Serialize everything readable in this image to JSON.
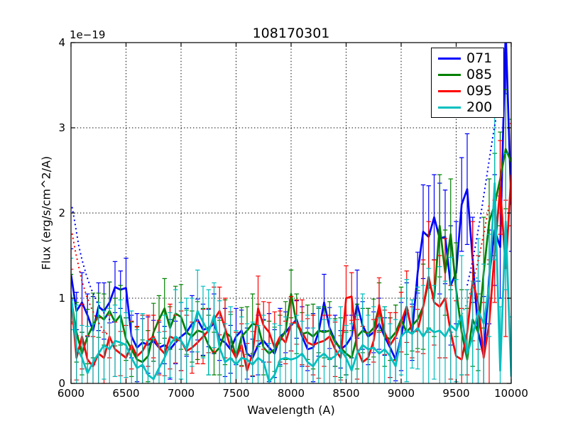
{
  "figure": {
    "title": "108170301",
    "offset_text": "1e−19",
    "xlabel": "Wavelength (A)",
    "ylabel": "Flux (erg/s/cm^2/A)",
    "background_color": "#ffffff"
  },
  "legend": {
    "position": "upper right",
    "entries": [
      {
        "label": "071",
        "color": "#0000ff"
      },
      {
        "label": "085",
        "color": "#008000"
      },
      {
        "label": "095",
        "color": "#ff0000"
      },
      {
        "label": "200",
        "color": "#00bfbf"
      }
    ]
  },
  "chart_data": {
    "type": "line",
    "title": "108170301",
    "xlabel": "Wavelength (A)",
    "ylabel": "Flux (erg/s/cm^2/A)",
    "y_offset_factor": "1e-19",
    "xlim": [
      6000,
      10000
    ],
    "ylim": [
      0,
      4
    ],
    "xticks": [
      6000,
      6500,
      7000,
      7500,
      8000,
      8500,
      9000,
      9500,
      10000
    ],
    "yticks": [
      0,
      1,
      2,
      3,
      4
    ],
    "grid": true,
    "grid_style": "dotted",
    "legend_position": "upper right",
    "x": [
      6000,
      6050,
      6100,
      6150,
      6200,
      6250,
      6300,
      6350,
      6400,
      6450,
      6500,
      6550,
      6600,
      6650,
      6700,
      6750,
      6800,
      6850,
      6900,
      6950,
      7000,
      7050,
      7100,
      7150,
      7200,
      7250,
      7300,
      7350,
      7400,
      7450,
      7500,
      7550,
      7600,
      7650,
      7700,
      7750,
      7800,
      7850,
      7900,
      7950,
      8000,
      8050,
      8100,
      8150,
      8200,
      8250,
      8300,
      8350,
      8400,
      8450,
      8500,
      8550,
      8600,
      8650,
      8700,
      8750,
      8800,
      8850,
      8900,
      8950,
      9000,
      9050,
      9100,
      9150,
      9200,
      9250,
      9300,
      9350,
      9400,
      9450,
      9500,
      9550,
      9600,
      9650,
      9700,
      9750,
      9800,
      9850,
      9900,
      9950,
      10000
    ],
    "series": [
      {
        "name": "071",
        "color": "#0000ff",
        "values": [
          1.28,
          0.85,
          0.95,
          0.8,
          0.62,
          0.9,
          0.85,
          0.95,
          1.13,
          1.1,
          1.12,
          0.55,
          0.42,
          0.48,
          0.45,
          0.5,
          0.42,
          0.45,
          0.4,
          0.48,
          0.55,
          0.6,
          0.7,
          0.75,
          0.63,
          0.65,
          0.7,
          0.52,
          0.48,
          0.4,
          0.55,
          0.62,
          0.35,
          0.3,
          0.45,
          0.5,
          0.42,
          0.35,
          0.55,
          0.6,
          0.68,
          0.75,
          0.55,
          0.4,
          0.42,
          0.6,
          0.95,
          0.65,
          0.5,
          0.4,
          0.45,
          0.55,
          0.93,
          0.68,
          0.55,
          0.6,
          0.7,
          0.55,
          0.42,
          0.28,
          0.55,
          0.9,
          0.6,
          1.3,
          1.78,
          1.72,
          1.95,
          1.7,
          1.72,
          1.15,
          1.3,
          2.1,
          2.28,
          1.45,
          0.6,
          0.32,
          1.25,
          1.8,
          1.6,
          4.15,
          2.1
        ],
        "errors": [
          0.3,
          0.22,
          0.35,
          0.25,
          0.4,
          0.28,
          0.33,
          0.24,
          0.3,
          0.22,
          0.35,
          0.25,
          0.4,
          0.28,
          0.33,
          0.24,
          0.3,
          0.22,
          0.35,
          0.25,
          0.4,
          0.28,
          0.33,
          0.24,
          0.3,
          0.22,
          0.35,
          0.25,
          0.4,
          0.28,
          0.33,
          0.24,
          0.3,
          0.22,
          0.35,
          0.25,
          0.4,
          0.28,
          0.33,
          0.24,
          0.3,
          0.22,
          0.35,
          0.25,
          0.4,
          0.28,
          0.33,
          0.24,
          0.3,
          0.22,
          0.35,
          0.25,
          0.4,
          0.28,
          0.33,
          0.24,
          0.3,
          0.22,
          0.35,
          0.25,
          0.4,
          0.28,
          0.33,
          0.24,
          0.55,
          0.6,
          0.5,
          0.65,
          0.55,
          0.7,
          0.6,
          0.55,
          0.65,
          0.5,
          0.6,
          0.7,
          0.55,
          0.65,
          0.6,
          0.75,
          0.55
        ]
      },
      {
        "name": "085",
        "color": "#008000",
        "values": [
          1.0,
          0.6,
          0.35,
          0.55,
          0.68,
          0.8,
          0.75,
          0.85,
          0.72,
          0.8,
          0.52,
          0.4,
          0.28,
          0.25,
          0.32,
          0.6,
          0.75,
          0.88,
          0.65,
          0.82,
          0.78,
          0.6,
          0.55,
          0.62,
          0.6,
          0.45,
          0.35,
          0.42,
          0.6,
          0.55,
          0.3,
          0.55,
          0.62,
          0.7,
          0.68,
          0.42,
          0.35,
          0.4,
          0.5,
          0.62,
          1.05,
          0.7,
          0.58,
          0.6,
          0.55,
          0.62,
          0.6,
          0.62,
          0.48,
          0.42,
          0.35,
          0.3,
          0.55,
          0.62,
          0.58,
          0.65,
          0.9,
          0.55,
          0.52,
          0.6,
          0.75,
          0.6,
          0.68,
          0.75,
          0.9,
          1.2,
          1.0,
          1.85,
          1.3,
          1.75,
          1.1,
          0.6,
          0.28,
          0.75,
          0.6,
          1.3,
          1.9,
          2.1,
          2.4,
          2.75,
          2.6
        ],
        "errors": [
          0.28,
          0.35,
          0.25,
          0.32,
          0.38,
          0.26,
          0.3,
          0.34,
          0.28,
          0.35,
          0.25,
          0.32,
          0.38,
          0.26,
          0.3,
          0.34,
          0.28,
          0.35,
          0.25,
          0.32,
          0.38,
          0.26,
          0.3,
          0.34,
          0.28,
          0.35,
          0.25,
          0.32,
          0.38,
          0.26,
          0.3,
          0.34,
          0.28,
          0.35,
          0.25,
          0.32,
          0.38,
          0.26,
          0.3,
          0.34,
          0.28,
          0.35,
          0.25,
          0.32,
          0.38,
          0.26,
          0.3,
          0.34,
          0.28,
          0.35,
          0.25,
          0.32,
          0.38,
          0.26,
          0.3,
          0.34,
          0.28,
          0.35,
          0.25,
          0.32,
          0.38,
          0.26,
          0.3,
          0.34,
          0.5,
          0.55,
          0.45,
          0.6,
          0.5,
          0.65,
          0.55,
          0.5,
          0.6,
          0.55,
          0.45,
          0.65,
          0.5,
          0.6,
          0.55,
          0.7,
          0.5
        ]
      },
      {
        "name": "095",
        "color": "#ff0000",
        "values": [
          1.02,
          0.3,
          0.55,
          0.28,
          0.2,
          0.35,
          0.3,
          0.55,
          0.4,
          0.35,
          0.3,
          0.45,
          0.32,
          0.38,
          0.5,
          0.55,
          0.42,
          0.35,
          0.55,
          0.52,
          0.5,
          0.38,
          0.42,
          0.48,
          0.55,
          0.62,
          0.75,
          0.85,
          0.65,
          0.42,
          0.3,
          0.45,
          0.15,
          0.35,
          0.88,
          0.68,
          0.6,
          0.42,
          0.55,
          0.48,
          0.7,
          0.72,
          0.6,
          0.48,
          0.45,
          0.48,
          0.5,
          0.55,
          0.4,
          0.3,
          1.0,
          1.02,
          0.4,
          0.25,
          0.3,
          0.5,
          0.92,
          0.6,
          0.45,
          0.55,
          0.72,
          0.9,
          0.6,
          0.62,
          0.9,
          1.25,
          0.95,
          0.9,
          1.0,
          0.6,
          0.32,
          0.28,
          0.6,
          1.2,
          0.95,
          0.3,
          0.7,
          1.55,
          2.3,
          1.35,
          2.45
        ],
        "errors": [
          0.32,
          0.26,
          0.38,
          0.28,
          0.35,
          0.42,
          0.3,
          0.25,
          0.32,
          0.26,
          0.38,
          0.28,
          0.35,
          0.42,
          0.3,
          0.25,
          0.32,
          0.26,
          0.38,
          0.28,
          0.35,
          0.42,
          0.3,
          0.25,
          0.32,
          0.26,
          0.38,
          0.28,
          0.35,
          0.42,
          0.3,
          0.25,
          0.32,
          0.26,
          0.38,
          0.28,
          0.35,
          0.42,
          0.3,
          0.25,
          0.32,
          0.26,
          0.38,
          0.28,
          0.35,
          0.42,
          0.3,
          0.25,
          0.32,
          0.26,
          0.38,
          0.28,
          0.35,
          0.42,
          0.3,
          0.25,
          0.32,
          0.26,
          0.38,
          0.28,
          0.35,
          0.42,
          0.3,
          0.25,
          0.55,
          0.65,
          0.5,
          0.6,
          0.7,
          0.55,
          0.65,
          0.6,
          0.5,
          0.7,
          0.55,
          0.65,
          0.75,
          0.6,
          0.55,
          0.8,
          0.6
        ]
      },
      {
        "name": "200",
        "color": "#00bfbf",
        "values": [
          1.05,
          0.42,
          0.3,
          0.12,
          0.25,
          0.35,
          0.45,
          0.4,
          0.5,
          0.48,
          0.45,
          0.3,
          0.18,
          0.22,
          0.1,
          0.05,
          0.18,
          0.3,
          0.45,
          0.55,
          0.5,
          0.4,
          0.6,
          0.85,
          0.72,
          0.6,
          0.8,
          0.42,
          0.25,
          0.3,
          0.22,
          0.3,
          0.28,
          0.22,
          0.3,
          0.25,
          0.02,
          0.1,
          0.28,
          0.3,
          0.28,
          0.3,
          0.35,
          0.25,
          0.2,
          0.3,
          0.35,
          0.28,
          0.32,
          0.4,
          0.3,
          0.15,
          0.35,
          0.45,
          0.4,
          0.42,
          0.35,
          0.4,
          0.32,
          0.2,
          0.55,
          0.62,
          0.58,
          0.65,
          0.55,
          0.65,
          0.6,
          0.62,
          0.55,
          0.68,
          0.62,
          0.8,
          0.35,
          0.55,
          0.85,
          0.7,
          1.15,
          2.35,
          0.15,
          1.9,
          0.08
        ],
        "errors": [
          0.42,
          0.5,
          0.38,
          0.55,
          0.45,
          0.6,
          0.4,
          0.48,
          0.42,
          0.5,
          0.38,
          0.55,
          0.45,
          0.6,
          0.4,
          0.48,
          0.42,
          0.5,
          0.38,
          0.55,
          0.45,
          0.6,
          0.4,
          0.48,
          0.42,
          0.5,
          0.38,
          0.55,
          0.45,
          0.6,
          0.4,
          0.48,
          0.42,
          0.5,
          0.38,
          0.55,
          0.45,
          0.6,
          0.4,
          0.48,
          0.42,
          0.5,
          0.38,
          0.55,
          0.45,
          0.6,
          0.4,
          0.48,
          0.42,
          0.5,
          0.38,
          0.55,
          0.45,
          0.6,
          0.4,
          0.48,
          0.42,
          0.5,
          0.38,
          0.55,
          0.45,
          0.6,
          0.4,
          0.48,
          0.6,
          0.7,
          0.55,
          0.75,
          0.65,
          0.8,
          0.6,
          0.7,
          0.75,
          0.65,
          0.85,
          0.7,
          0.6,
          0.9,
          0.75,
          0.8,
          0.7
        ]
      }
    ],
    "dotted_segments": [
      {
        "series": "071",
        "color": "#0000ff",
        "points": [
          [
            6010,
            2.07
          ],
          [
            6040,
            1.85
          ],
          [
            6070,
            1.62
          ],
          [
            6100,
            1.45
          ],
          [
            6140,
            1.27
          ],
          [
            6180,
            1.12
          ],
          [
            6230,
            0.97
          ],
          [
            6280,
            0.86
          ],
          [
            6340,
            0.76
          ],
          [
            6400,
            0.7
          ]
        ]
      },
      {
        "series": "095",
        "color": "#ff0000",
        "points": [
          [
            6010,
            1.76
          ],
          [
            6040,
            1.55
          ],
          [
            6070,
            1.37
          ],
          [
            6100,
            1.2
          ],
          [
            6140,
            1.03
          ],
          [
            6180,
            0.9
          ],
          [
            6230,
            0.76
          ],
          [
            6280,
            0.65
          ],
          [
            6340,
            0.56
          ]
        ]
      },
      {
        "series": "071",
        "color": "#0000ff",
        "points": [
          [
            9600,
            1.15
          ],
          [
            9640,
            1.38
          ],
          [
            9680,
            1.65
          ],
          [
            9720,
            1.95
          ],
          [
            9760,
            2.28
          ],
          [
            9800,
            2.62
          ],
          [
            9840,
            2.95
          ],
          [
            9880,
            3.25
          ]
        ]
      },
      {
        "series": "095",
        "color": "#ff0000",
        "points": [
          [
            9600,
            0.95
          ],
          [
            9640,
            1.12
          ],
          [
            9680,
            1.33
          ],
          [
            9720,
            1.56
          ],
          [
            9760,
            1.82
          ],
          [
            9800,
            2.1
          ]
        ]
      },
      {
        "series": "200",
        "color": "#00bfbf",
        "points": [
          [
            9440,
            0.55
          ],
          [
            9490,
            0.66
          ],
          [
            9540,
            0.78
          ],
          [
            9590,
            0.92
          ],
          [
            9640,
            1.08
          ],
          [
            9690,
            1.25
          ]
        ]
      }
    ]
  }
}
